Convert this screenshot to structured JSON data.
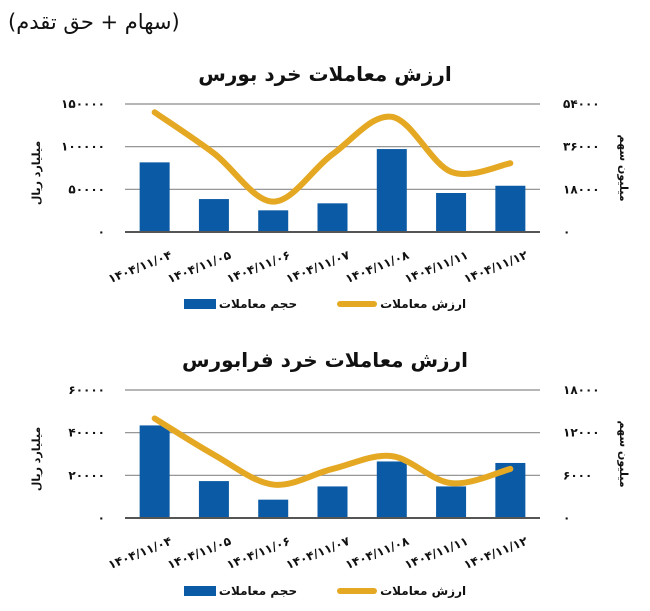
{
  "header_note": "(سهام + حق تقدم)",
  "colors": {
    "bar": "#0b5aa5",
    "line": "#e5a823",
    "grid": "#8a8a8a",
    "axis": "#555555"
  },
  "legend": {
    "line_label": "ارزش معاملات",
    "bar_label": "حجم معاملات"
  },
  "chart_data": [
    {
      "type": "bar+line",
      "title": "ارزش معاملات خرد بورس",
      "categories": [
        "۱۴۰۴/۱۱/۰۴",
        "۱۴۰۴/۱۱/۰۵",
        "۱۴۰۴/۱۱/۰۶",
        "۱۴۰۴/۱۱/۰۷",
        "۱۴۰۴/۱۱/۰۸",
        "۱۴۰۴/۱۱/۱۱",
        "۱۴۰۴/۱۱/۱۲"
      ],
      "series": [
        {
          "name": "حجم معاملات",
          "kind": "bar",
          "axis": "left",
          "values": [
            81600,
            38600,
            25400,
            33600,
            97200,
            45700,
            54200
          ]
        },
        {
          "name": "ارزش معاملات",
          "kind": "line",
          "axis": "right",
          "values": [
            50500,
            33200,
            12800,
            32800,
            48600,
            25400,
            29000
          ]
        }
      ],
      "left_axis": {
        "label": "میلیارد ریال",
        "ylim": [
          0,
          150000
        ],
        "ticks": [
          "۰",
          "۵۰۰۰۰",
          "۱۰۰۰۰۰",
          "۱۵۰۰۰۰"
        ]
      },
      "right_axis": {
        "label": "میلیون سهم",
        "ylim": [
          0,
          54000
        ],
        "ticks": [
          "۰",
          "۱۸۰۰۰",
          "۳۶۰۰۰",
          "۵۴۰۰۰"
        ]
      },
      "grid": true,
      "legend_position": "bottom"
    },
    {
      "type": "bar+line",
      "title": "ارزش معاملات خرد فرابورس",
      "categories": [
        "۱۴۰۴/۱۱/۰۴",
        "۱۴۰۴/۱۱/۰۵",
        "۱۴۰۴/۱۱/۰۶",
        "۱۴۰۴/۱۱/۰۷",
        "۱۴۰۴/۱۱/۰۸",
        "۱۴۰۴/۱۱/۱۱",
        "۱۴۰۴/۱۱/۱۲"
      ],
      "series": [
        {
          "name": "حجم معاملات",
          "kind": "bar",
          "axis": "left",
          "values": [
            43400,
            17300,
            8600,
            14800,
            26500,
            14800,
            25800
          ]
        },
        {
          "name": "ارزش معاملات",
          "kind": "line",
          "axis": "right",
          "values": [
            14000,
            8900,
            4700,
            6900,
            8700,
            4900,
            6900
          ]
        }
      ],
      "left_axis": {
        "label": "میلیارد ریال",
        "ylim": [
          0,
          60000
        ],
        "ticks": [
          "۰",
          "۲۰۰۰۰",
          "۴۰۰۰۰",
          "۶۰۰۰۰"
        ]
      },
      "right_axis": {
        "label": "میلیون سهم",
        "ylim": [
          0,
          18000
        ],
        "ticks": [
          "۰",
          "۶۰۰۰",
          "۱۲۰۰۰",
          "۱۸۰۰۰"
        ]
      },
      "grid": true,
      "legend_position": "bottom"
    }
  ]
}
